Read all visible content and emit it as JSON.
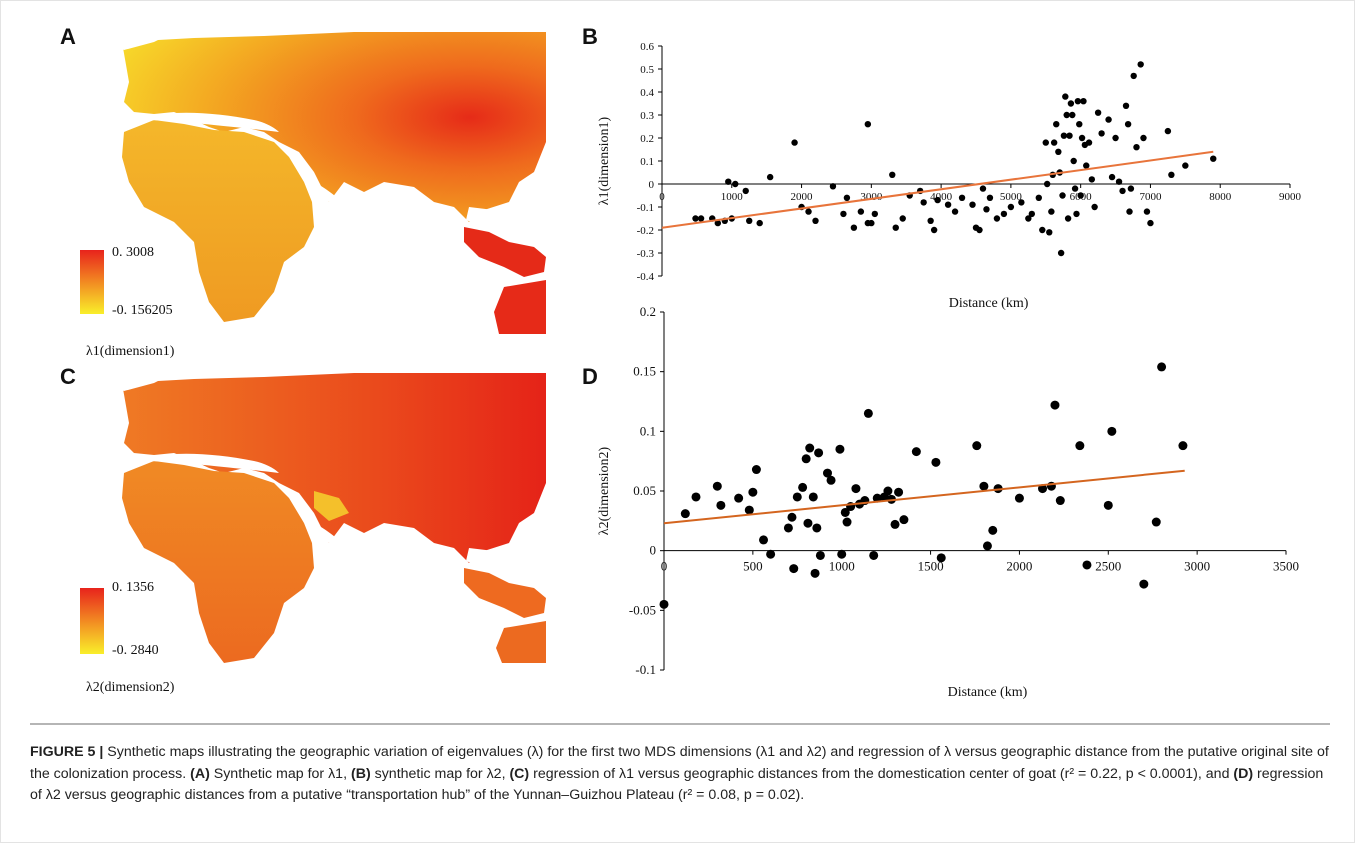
{
  "panels": {
    "A": {
      "letter": "A",
      "legend_max": "0. 3008",
      "legend_min": "-0. 156205",
      "legend_label": "λ1(dimension1)",
      "colors": {
        "high": "#e8231c",
        "low": "#f9ef2a"
      }
    },
    "B": {
      "letter": "B"
    },
    "C": {
      "letter": "C",
      "legend_max": "0. 1356",
      "legend_min": "-0. 2840",
      "legend_label": "λ2(dimension2)",
      "colors": {
        "high": "#e8231c",
        "low": "#f9ef2a"
      }
    },
    "D": {
      "letter": "D"
    }
  },
  "chart_data": [
    {
      "panel": "B",
      "type": "scatter",
      "xlabel": "Distance (km)",
      "ylabel": "λ1(dimension1)",
      "xlim": [
        0,
        9000
      ],
      "ylim": [
        -0.4,
        0.6
      ],
      "xticks": [
        "0",
        "1000",
        "2000",
        "3000",
        "4000",
        "5000",
        "6000",
        "7000",
        "8000",
        "9000"
      ],
      "yticks": [
        "0.6",
        "0.5",
        "0.4",
        "0.3",
        "0.2",
        "0.1",
        "0",
        "-0.1",
        "-0.2",
        "-0.3",
        "-0.4"
      ],
      "grid": false,
      "point_color": "#000000",
      "trend_color": "#e8743b",
      "trendline": {
        "x": [
          0,
          7900
        ],
        "y": [
          -0.19,
          0.14
        ]
      },
      "points": [
        [
          480,
          -0.15
        ],
        [
          560,
          -0.15
        ],
        [
          720,
          -0.15
        ],
        [
          800,
          -0.17
        ],
        [
          900,
          -0.16
        ],
        [
          950,
          0.01
        ],
        [
          1000,
          -0.15
        ],
        [
          1050,
          0.0
        ],
        [
          1200,
          -0.03
        ],
        [
          1250,
          -0.16
        ],
        [
          1400,
          -0.17
        ],
        [
          1550,
          0.03
        ],
        [
          1900,
          0.18
        ],
        [
          2000,
          -0.1
        ],
        [
          2100,
          -0.12
        ],
        [
          2200,
          -0.16
        ],
        [
          2450,
          -0.01
        ],
        [
          2600,
          -0.13
        ],
        [
          2650,
          -0.06
        ],
        [
          2750,
          -0.19
        ],
        [
          2850,
          -0.12
        ],
        [
          2950,
          0.26
        ],
        [
          2950,
          -0.17
        ],
        [
          3000,
          -0.17
        ],
        [
          3050,
          -0.13
        ],
        [
          3300,
          0.04
        ],
        [
          3350,
          -0.19
        ],
        [
          3450,
          -0.15
        ],
        [
          3550,
          -0.05
        ],
        [
          3700,
          -0.03
        ],
        [
          3750,
          -0.08
        ],
        [
          3850,
          -0.16
        ],
        [
          3900,
          -0.2
        ],
        [
          3950,
          -0.07
        ],
        [
          4100,
          -0.09
        ],
        [
          4200,
          -0.12
        ],
        [
          4300,
          -0.06
        ],
        [
          4450,
          -0.09
        ],
        [
          4500,
          -0.19
        ],
        [
          4550,
          -0.2
        ],
        [
          4600,
          -0.02
        ],
        [
          4650,
          -0.11
        ],
        [
          4700,
          -0.06
        ],
        [
          4800,
          -0.15
        ],
        [
          4900,
          -0.13
        ],
        [
          5000,
          -0.1
        ],
        [
          5150,
          -0.08
        ],
        [
          5250,
          -0.15
        ],
        [
          5300,
          -0.13
        ],
        [
          5400,
          -0.06
        ],
        [
          5450,
          -0.2
        ],
        [
          5500,
          0.18
        ],
        [
          5520,
          0.0
        ],
        [
          5550,
          -0.21
        ],
        [
          5580,
          -0.12
        ],
        [
          5600,
          0.04
        ],
        [
          5620,
          0.18
        ],
        [
          5650,
          0.26
        ],
        [
          5680,
          0.14
        ],
        [
          5700,
          0.05
        ],
        [
          5720,
          -0.3
        ],
        [
          5740,
          -0.05
        ],
        [
          5760,
          0.21
        ],
        [
          5780,
          0.38
        ],
        [
          5800,
          0.3
        ],
        [
          5820,
          -0.15
        ],
        [
          5840,
          0.21
        ],
        [
          5860,
          0.35
        ],
        [
          5880,
          0.3
        ],
        [
          5900,
          0.1
        ],
        [
          5920,
          -0.02
        ],
        [
          5940,
          -0.13
        ],
        [
          5960,
          0.36
        ],
        [
          5980,
          0.26
        ],
        [
          6000,
          -0.05
        ],
        [
          6020,
          0.2
        ],
        [
          6040,
          0.36
        ],
        [
          6060,
          0.17
        ],
        [
          6080,
          0.08
        ],
        [
          6120,
          0.18
        ],
        [
          6160,
          0.02
        ],
        [
          6200,
          -0.1
        ],
        [
          6250,
          0.31
        ],
        [
          6300,
          0.22
        ],
        [
          6400,
          0.28
        ],
        [
          6450,
          0.03
        ],
        [
          6500,
          0.2
        ],
        [
          6550,
          0.01
        ],
        [
          6600,
          -0.03
        ],
        [
          6650,
          0.34
        ],
        [
          6680,
          0.26
        ],
        [
          6700,
          -0.12
        ],
        [
          6720,
          -0.02
        ],
        [
          6760,
          0.47
        ],
        [
          6800,
          0.16
        ],
        [
          6860,
          0.52
        ],
        [
          6900,
          0.2
        ],
        [
          6950,
          -0.12
        ],
        [
          7000,
          -0.17
        ],
        [
          7250,
          0.23
        ],
        [
          7300,
          0.04
        ],
        [
          7500,
          0.08
        ],
        [
          7900,
          0.11
        ]
      ]
    },
    {
      "panel": "D",
      "type": "scatter",
      "xlabel": "Distance (km)",
      "ylabel": "λ2(dimension2)",
      "xlim": [
        0,
        3500
      ],
      "ylim": [
        -0.1,
        0.2
      ],
      "xticks": [
        "0",
        "500",
        "1000",
        "1500",
        "2000",
        "2500",
        "3000",
        "3500"
      ],
      "yticks": [
        "0.2",
        "0.15",
        "0.1",
        "0.05",
        "0",
        "-0.05",
        "-0.1"
      ],
      "grid": false,
      "point_color": "#000000",
      "trend_color": "#d4651f",
      "trendline": {
        "x": [
          0,
          2930
        ],
        "y": [
          0.023,
          0.067
        ]
      },
      "points": [
        [
          0,
          -0.045
        ],
        [
          120,
          0.031
        ],
        [
          180,
          0.045
        ],
        [
          300,
          0.054
        ],
        [
          320,
          0.038
        ],
        [
          420,
          0.044
        ],
        [
          480,
          0.034
        ],
        [
          500,
          0.049
        ],
        [
          520,
          0.068
        ],
        [
          560,
          0.009
        ],
        [
          600,
          -0.003
        ],
        [
          700,
          0.019
        ],
        [
          720,
          0.028
        ],
        [
          730,
          -0.015
        ],
        [
          750,
          0.045
        ],
        [
          780,
          0.053
        ],
        [
          800,
          0.077
        ],
        [
          810,
          0.023
        ],
        [
          820,
          0.086
        ],
        [
          840,
          0.045
        ],
        [
          850,
          -0.019
        ],
        [
          860,
          0.019
        ],
        [
          870,
          0.082
        ],
        [
          880,
          -0.004
        ],
        [
          920,
          0.065
        ],
        [
          940,
          0.059
        ],
        [
          990,
          0.085
        ],
        [
          1000,
          -0.003
        ],
        [
          1020,
          0.032
        ],
        [
          1030,
          0.024
        ],
        [
          1050,
          0.037
        ],
        [
          1080,
          0.052
        ],
        [
          1100,
          0.039
        ],
        [
          1130,
          0.042
        ],
        [
          1150,
          0.115
        ],
        [
          1180,
          -0.004
        ],
        [
          1200,
          0.044
        ],
        [
          1240,
          0.045
        ],
        [
          1260,
          0.05
        ],
        [
          1280,
          0.043
        ],
        [
          1300,
          0.022
        ],
        [
          1320,
          0.049
        ],
        [
          1350,
          0.026
        ],
        [
          1420,
          0.083
        ],
        [
          1530,
          0.074
        ],
        [
          1560,
          -0.006
        ],
        [
          1760,
          0.088
        ],
        [
          1800,
          0.054
        ],
        [
          1820,
          0.004
        ],
        [
          1850,
          0.017
        ],
        [
          1880,
          0.052
        ],
        [
          2000,
          0.044
        ],
        [
          2130,
          0.052
        ],
        [
          2180,
          0.054
        ],
        [
          2200,
          0.122
        ],
        [
          2230,
          0.042
        ],
        [
          2340,
          0.088
        ],
        [
          2380,
          -0.012
        ],
        [
          2500,
          0.038
        ],
        [
          2520,
          0.1
        ],
        [
          2700,
          -0.028
        ],
        [
          2770,
          0.024
        ],
        [
          2800,
          0.154
        ],
        [
          2920,
          0.088
        ]
      ]
    }
  ],
  "caption": {
    "figure_label": "FIGURE 5 |",
    "segments": [
      {
        "text": " Synthetic maps illustrating the geographic variation of eigenvalues (λ) for the first two MDS dimensions (λ1 and λ2) and regression of λ versus geographic distance from the putative original site of the colonization process. ",
        "bold": false
      },
      {
        "text": "(A)",
        "bold": true
      },
      {
        "text": " Synthetic map for λ1, ",
        "bold": false
      },
      {
        "text": "(B)",
        "bold": true
      },
      {
        "text": " synthetic map for λ2, ",
        "bold": false
      },
      {
        "text": "(C)",
        "bold": true
      },
      {
        "text": " regression of λ1 versus geographic distances from the domestication center of goat (r² = 0.22, p < 0.0001), and ",
        "bold": false
      },
      {
        "text": "(D)",
        "bold": true
      },
      {
        "text": " regression of λ2 versus geographic distances from a putative “transportation hub” of the Yunnan–Guizhou Plateau (r² = 0.08, p = 0.02).",
        "bold": false
      }
    ]
  }
}
